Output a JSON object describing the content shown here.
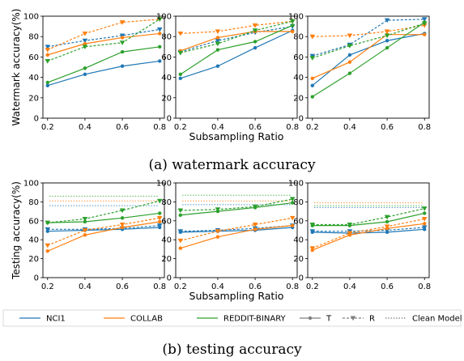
{
  "colors": {
    "NCI1": "#1f77b4",
    "COLLAB": "#ff7f0e",
    "REDDIT-BINARY": "#2ca02c",
    "grey": "#808080"
  },
  "captions": {
    "a": "(a) watermark accuracy",
    "b": "(b) testing accuracy"
  },
  "legend": {
    "entries": [
      "NCI1",
      "COLLAB",
      "REDDIT-BINARY",
      "T",
      "R",
      "Clean Model"
    ]
  },
  "chart_data": [
    {
      "type": "line",
      "group": "watermark",
      "panel": 1,
      "ylabel": "Watermark accuracy(%)",
      "xlabel": "",
      "x": [
        0.2,
        0.4,
        0.6,
        0.8
      ],
      "ylim": [
        0,
        100
      ],
      "xticks": [
        "0.2",
        "0.4",
        "0.6",
        "0.8"
      ],
      "yticks": [
        "0",
        "20",
        "40",
        "60",
        "80",
        "100"
      ],
      "series": [
        {
          "name": "NCI1",
          "variant": "T",
          "values": [
            32,
            43,
            51,
            56
          ]
        },
        {
          "name": "NCI1",
          "variant": "R",
          "values": [
            70,
            76,
            81,
            87
          ]
        },
        {
          "name": "COLLAB",
          "variant": "T",
          "values": [
            62,
            73,
            79,
            83
          ]
        },
        {
          "name": "COLLAB",
          "variant": "R",
          "values": [
            67,
            83,
            94,
            97
          ]
        },
        {
          "name": "REDDIT-BINARY",
          "variant": "T",
          "values": [
            35,
            49,
            65,
            70
          ]
        },
        {
          "name": "REDDIT-BINARY",
          "variant": "R",
          "values": [
            56,
            70,
            74,
            97
          ]
        }
      ]
    },
    {
      "type": "line",
      "group": "watermark",
      "panel": 2,
      "ylabel": "",
      "xlabel": "Subsampling Ratio",
      "x": [
        0.2,
        0.4,
        0.6,
        0.8
      ],
      "ylim": [
        0,
        100
      ],
      "xticks": [
        "0.2",
        "0.4",
        "0.6",
        "0.8"
      ],
      "yticks": [
        "0",
        "20",
        "40",
        "60",
        "80",
        "100"
      ],
      "series": [
        {
          "name": "NCI1",
          "variant": "T",
          "values": [
            39,
            51,
            69,
            86
          ]
        },
        {
          "name": "NCI1",
          "variant": "R",
          "values": [
            65,
            76,
            84,
            90
          ]
        },
        {
          "name": "COLLAB",
          "variant": "T",
          "values": [
            66,
            79,
            85,
            85
          ]
        },
        {
          "name": "COLLAB",
          "variant": "R",
          "values": [
            83,
            85,
            91,
            95
          ]
        },
        {
          "name": "REDDIT-BINARY",
          "variant": "T",
          "values": [
            43,
            67,
            75,
            91
          ]
        },
        {
          "name": "REDDIT-BINARY",
          "variant": "R",
          "values": [
            64,
            73,
            86,
            95
          ]
        }
      ]
    },
    {
      "type": "line",
      "group": "watermark",
      "panel": 3,
      "ylabel": "",
      "xlabel": "",
      "x": [
        0.2,
        0.4,
        0.6,
        0.8
      ],
      "ylim": [
        0,
        100
      ],
      "xticks": [
        "0.2",
        "0.4",
        "0.6",
        "0.8"
      ],
      "yticks": [
        "0",
        "20",
        "40",
        "60",
        "80",
        "100"
      ],
      "series": [
        {
          "name": "NCI1",
          "variant": "T",
          "values": [
            32,
            62,
            76,
            83
          ]
        },
        {
          "name": "NCI1",
          "variant": "R",
          "values": [
            61,
            72,
            96,
            97
          ]
        },
        {
          "name": "COLLAB",
          "variant": "T",
          "values": [
            39,
            55,
            82,
            82
          ]
        },
        {
          "name": "COLLAB",
          "variant": "R",
          "values": [
            80,
            81,
            85,
            91
          ]
        },
        {
          "name": "REDDIT-BINARY",
          "variant": "T",
          "values": [
            21,
            44,
            69,
            94
          ]
        },
        {
          "name": "REDDIT-BINARY",
          "variant": "R",
          "values": [
            59,
            71,
            81,
            93
          ]
        }
      ]
    },
    {
      "type": "line",
      "group": "testing",
      "panel": 1,
      "ylabel": "Testing accuracy(%)",
      "xlabel": "",
      "x": [
        0.2,
        0.4,
        0.6,
        0.8
      ],
      "ylim": [
        0,
        100
      ],
      "xticks": [
        "0.2",
        "0.4",
        "0.6",
        "0.8"
      ],
      "yticks": [
        "0",
        "20",
        "40",
        "60",
        "80",
        "100"
      ],
      "series": [
        {
          "name": "NCI1",
          "variant": "T",
          "values": [
            49,
            50,
            51,
            53
          ]
        },
        {
          "name": "NCI1",
          "variant": "R",
          "values": [
            51,
            51,
            52,
            55
          ]
        },
        {
          "name": "COLLAB",
          "variant": "T",
          "values": [
            28,
            45,
            53,
            59
          ]
        },
        {
          "name": "COLLAB",
          "variant": "R",
          "values": [
            34,
            50,
            56,
            63
          ]
        },
        {
          "name": "REDDIT-BINARY",
          "variant": "T",
          "values": [
            58,
            59,
            63,
            68
          ]
        },
        {
          "name": "REDDIT-BINARY",
          "variant": "R",
          "values": [
            58,
            62,
            71,
            81
          ]
        }
      ],
      "clean": {
        "NCI1": 76,
        "COLLAB": 81,
        "REDDIT-BINARY": 86
      }
    },
    {
      "type": "line",
      "group": "testing",
      "panel": 2,
      "ylabel": "",
      "xlabel": "Subsampling Ratio",
      "x": [
        0.2,
        0.4,
        0.6,
        0.8
      ],
      "ylim": [
        0,
        100
      ],
      "xticks": [
        "0.2",
        "0.4",
        "0.6",
        "0.8"
      ],
      "yticks": [
        "0",
        "20",
        "40",
        "60",
        "80",
        "100"
      ],
      "series": [
        {
          "name": "NCI1",
          "variant": "T",
          "values": [
            48,
            49,
            50,
            53
          ]
        },
        {
          "name": "NCI1",
          "variant": "R",
          "values": [
            49,
            50,
            52,
            55
          ]
        },
        {
          "name": "COLLAB",
          "variant": "T",
          "values": [
            31,
            43,
            51,
            55
          ]
        },
        {
          "name": "COLLAB",
          "variant": "R",
          "values": [
            39,
            49,
            56,
            63
          ]
        },
        {
          "name": "REDDIT-BINARY",
          "variant": "T",
          "values": [
            66,
            70,
            74,
            79
          ]
        },
        {
          "name": "REDDIT-BINARY",
          "variant": "R",
          "values": [
            71,
            72,
            75,
            83
          ]
        }
      ],
      "clean": {
        "NCI1": 77,
        "COLLAB": 81,
        "REDDIT-BINARY": 87
      }
    },
    {
      "type": "line",
      "group": "testing",
      "panel": 3,
      "ylabel": "",
      "xlabel": "",
      "x": [
        0.2,
        0.4,
        0.6,
        0.8
      ],
      "ylim": [
        0,
        100
      ],
      "xticks": [
        "0.2",
        "0.4",
        "0.6",
        "0.8"
      ],
      "yticks": [
        "0",
        "20",
        "40",
        "60",
        "80",
        "100"
      ],
      "series": [
        {
          "name": "NCI1",
          "variant": "T",
          "values": [
            48,
            47,
            48,
            51
          ]
        },
        {
          "name": "NCI1",
          "variant": "R",
          "values": [
            49,
            49,
            50,
            53
          ]
        },
        {
          "name": "COLLAB",
          "variant": "T",
          "values": [
            29,
            45,
            52,
            57
          ]
        },
        {
          "name": "COLLAB",
          "variant": "R",
          "values": [
            31,
            47,
            54,
            62
          ]
        },
        {
          "name": "REDDIT-BINARY",
          "variant": "T",
          "values": [
            55,
            55,
            59,
            68
          ]
        },
        {
          "name": "REDDIT-BINARY",
          "variant": "R",
          "values": [
            56,
            56,
            64,
            73
          ]
        }
      ],
      "clean": {
        "NCI1": 74,
        "COLLAB": 79,
        "REDDIT-BINARY": 76
      }
    }
  ]
}
